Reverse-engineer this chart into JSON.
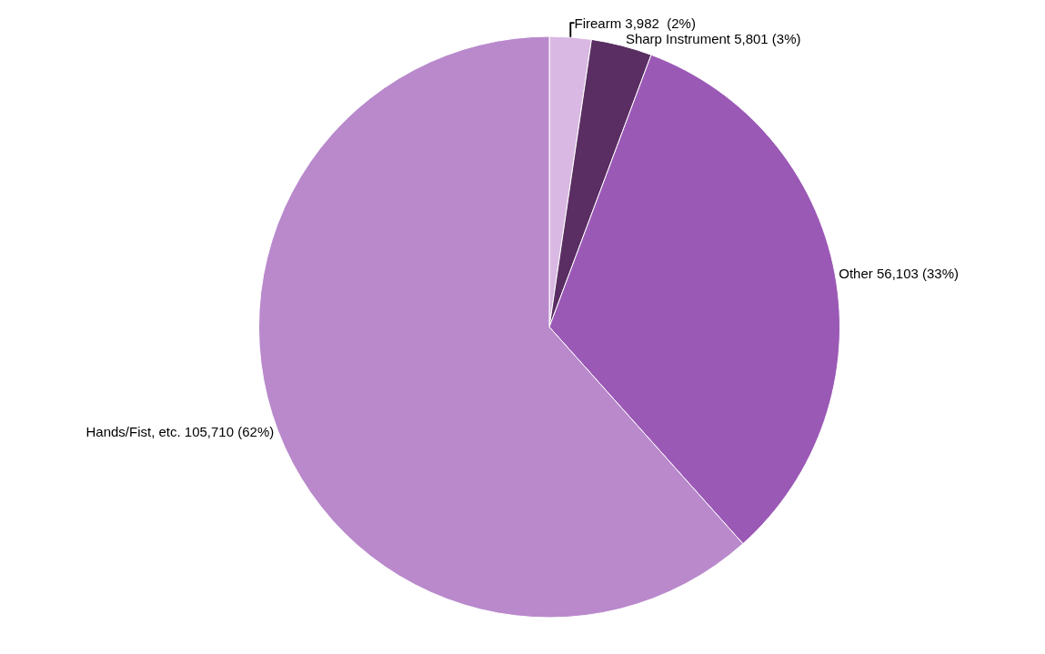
{
  "chart_data": {
    "type": "pie",
    "categories": [
      "Firearm",
      "Sharp Instrument",
      "Other",
      "Hands/Fist, etc."
    ],
    "values": [
      3982,
      5801,
      56103,
      105710
    ],
    "value_labels": [
      "3,982  (2%)",
      "5,801 (3%)",
      "56,103 (33%)",
      "105,710 (62%)"
    ],
    "colors": [
      "#d9b8e3",
      "#5a2e62",
      "#9b59b6",
      "#b989cc"
    ],
    "legend": false
  }
}
